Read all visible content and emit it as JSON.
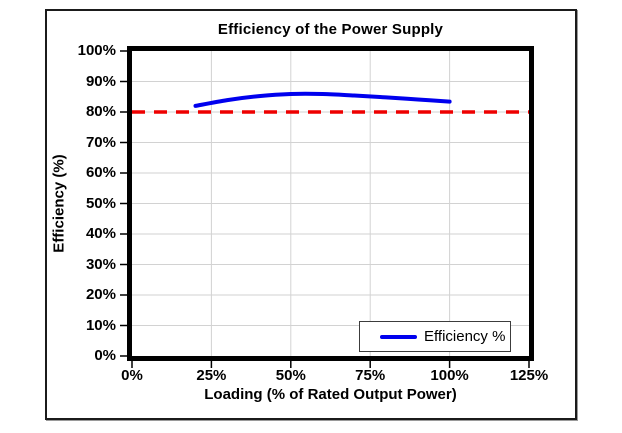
{
  "chart_data": {
    "type": "line",
    "title": "Efficiency of the Power Supply",
    "xlabel": "Loading (% of Rated Output Power)",
    "ylabel": "Efficiency (%)",
    "xlim": [
      0,
      125
    ],
    "ylim": [
      0,
      100
    ],
    "x_ticks": [
      0,
      25,
      50,
      75,
      100,
      125
    ],
    "x_tick_labels": [
      "0%",
      "25%",
      "50%",
      "75%",
      "100%",
      "125%"
    ],
    "y_ticks": [
      0,
      10,
      20,
      30,
      40,
      50,
      60,
      70,
      80,
      90,
      100
    ],
    "y_tick_labels": [
      "0%",
      "10%",
      "20%",
      "30%",
      "40%",
      "50%",
      "60%",
      "70%",
      "80%",
      "90%",
      "100%"
    ],
    "grid": true,
    "grid_color": "#d2d2d2",
    "plot_border_color": "#000000",
    "background_color": "#ffffff",
    "legend_position": "inside-bottom-right",
    "series": [
      {
        "name": "Efficiency %",
        "color": "#0000ee",
        "line_style": "solid-smooth",
        "x": [
          20,
          30,
          40,
          50,
          60,
          70,
          80,
          90,
          100
        ],
        "y": [
          82.0,
          83.9,
          85.2,
          85.9,
          85.9,
          85.4,
          84.8,
          84.1,
          83.4
        ]
      }
    ],
    "reference_line": {
      "y": 80,
      "color": "#ee0000",
      "line_style": "dashed"
    }
  }
}
